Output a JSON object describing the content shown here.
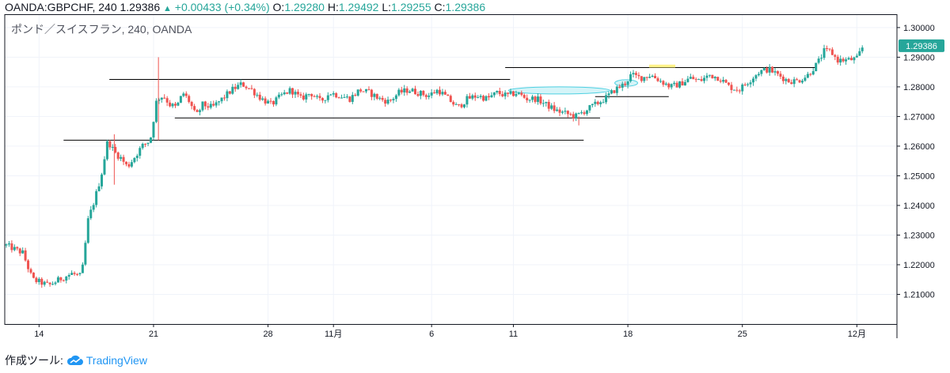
{
  "header": {
    "symbol": "OANDA:GBPCHF, 240",
    "last": "1.29386",
    "change": "+0.00433 (+0.34%)",
    "o_label": "O:",
    "o_value": "1.29280",
    "h_label": "H:",
    "h_value": "1.29492",
    "l_label": "L:",
    "l_value": "1.29255",
    "c_label": "C:",
    "c_value": "1.29386",
    "triangle_icon": "triangle-up-icon"
  },
  "footer": {
    "made_with": "作成ツール:",
    "brand": "TradingView",
    "logo_icon": "tradingview-cloud-icon"
  },
  "colors": {
    "up": "#26a69a",
    "down": "#ef5350",
    "grid": "#f0f3fa",
    "axis": "#131722",
    "price_tag": "#26a69a",
    "highlight_cyan": "#b2ebf2",
    "highlight_yellow": "#fff176"
  },
  "chart_data": {
    "type": "candlestick",
    "title": "ポンド／スイスフラン, 240, OANDA",
    "ylim": [
      1.2,
      1.3045
    ],
    "y_ticks": [
      "1.30000",
      "1.29000",
      "1.28000",
      "1.27000",
      "1.26000",
      "1.25000",
      "1.24000",
      "1.23000",
      "1.22000",
      "1.21000"
    ],
    "y_tick_values": [
      1.3,
      1.29,
      1.28,
      1.27,
      1.26,
      1.25,
      1.24,
      1.23,
      1.22,
      1.21
    ],
    "x_labels": [
      "14",
      "21",
      "28",
      "11月",
      "6",
      "11",
      "18",
      "25",
      "12月"
    ],
    "x_label_day_index": [
      2,
      9,
      16,
      20,
      26,
      31,
      38,
      45,
      52
    ],
    "total_days": 53,
    "current_price_label": "1.29386",
    "current_price": 1.29386,
    "close_path": [
      [
        0,
        1.2265
      ],
      [
        1,
        1.224
      ],
      [
        1.6,
        1.215
      ],
      [
        2.6,
        1.213
      ],
      [
        3.4,
        1.2155
      ],
      [
        4.0,
        1.217
      ],
      [
        4.6,
        1.216
      ],
      [
        5.0,
        1.235
      ],
      [
        5.4,
        1.242
      ],
      [
        5.8,
        1.25
      ],
      [
        6.2,
        1.262
      ],
      [
        6.6,
        1.258
      ],
      [
        7.0,
        1.256
      ],
      [
        7.4,
        1.253
      ],
      [
        7.8,
        1.256
      ],
      [
        8.3,
        1.26
      ],
      [
        8.8,
        1.262
      ],
      [
        9.2,
        1.276
      ],
      [
        9.6,
        1.277
      ],
      [
        10.0,
        1.274
      ],
      [
        10.4,
        1.273
      ],
      [
        10.8,
        1.278
      ],
      [
        11.2,
        1.275
      ],
      [
        11.6,
        1.27
      ],
      [
        12.0,
        1.274
      ],
      [
        12.6,
        1.273
      ],
      [
        13.2,
        1.276
      ],
      [
        13.8,
        1.279
      ],
      [
        14.4,
        1.281
      ],
      [
        15.0,
        1.279
      ],
      [
        15.6,
        1.276
      ],
      [
        16.2,
        1.274
      ],
      [
        16.8,
        1.277
      ],
      [
        17.4,
        1.279
      ],
      [
        18.0,
        1.276
      ],
      [
        18.6,
        1.278
      ],
      [
        19.2,
        1.275
      ],
      [
        19.8,
        1.278
      ],
      [
        20.4,
        1.277
      ],
      [
        21.0,
        1.276
      ],
      [
        21.6,
        1.279
      ],
      [
        22.2,
        1.278
      ],
      [
        22.8,
        1.276
      ],
      [
        23.4,
        1.275
      ],
      [
        24.0,
        1.278
      ],
      [
        24.6,
        1.279
      ],
      [
        25.2,
        1.278
      ],
      [
        25.8,
        1.277
      ],
      [
        26.4,
        1.279
      ],
      [
        27.0,
        1.276
      ],
      [
        27.6,
        1.273
      ],
      [
        28.2,
        1.276
      ],
      [
        28.8,
        1.277
      ],
      [
        29.4,
        1.276
      ],
      [
        30.0,
        1.278
      ],
      [
        30.6,
        1.277
      ],
      [
        31.2,
        1.278
      ],
      [
        31.8,
        1.276
      ],
      [
        32.4,
        1.276
      ],
      [
        33.0,
        1.274
      ],
      [
        33.6,
        1.272
      ],
      [
        34.2,
        1.271
      ],
      [
        34.8,
        1.27
      ],
      [
        35.4,
        1.272
      ],
      [
        36.0,
        1.274
      ],
      [
        36.6,
        1.276
      ],
      [
        37.2,
        1.279
      ],
      [
        37.8,
        1.281
      ],
      [
        38.2,
        1.284
      ],
      [
        38.8,
        1.283
      ],
      [
        39.4,
        1.284
      ],
      [
        40.0,
        1.282
      ],
      [
        40.6,
        1.28
      ],
      [
        41.2,
        1.281
      ],
      [
        41.8,
        1.283
      ],
      [
        42.4,
        1.282
      ],
      [
        43.0,
        1.284
      ],
      [
        43.6,
        1.283
      ],
      [
        44.2,
        1.28
      ],
      [
        44.8,
        1.279
      ],
      [
        45.4,
        1.282
      ],
      [
        46.0,
        1.285
      ],
      [
        46.6,
        1.286
      ],
      [
        47.2,
        1.284
      ],
      [
        47.8,
        1.282
      ],
      [
        48.4,
        1.282
      ],
      [
        49.0,
        1.284
      ],
      [
        49.6,
        1.288
      ],
      [
        50.0,
        1.292
      ],
      [
        50.4,
        1.292
      ],
      [
        50.8,
        1.289
      ],
      [
        51.4,
        1.289
      ],
      [
        52.0,
        1.2895
      ],
      [
        52.4,
        1.2939
      ]
    ],
    "spikes": [
      {
        "day": 9.3,
        "high": 1.29,
        "low": 1.262
      },
      {
        "day": 6.6,
        "high": 1.264,
        "low": 1.247
      },
      {
        "day": 35.0,
        "high": 1.27,
        "low": 1.267
      }
    ],
    "horizontal_lines": [
      {
        "y": 1.2825,
        "from_day": 6.3,
        "to_day": 30.8
      },
      {
        "y": 1.2695,
        "from_day": 10.3,
        "to_day": 36.3
      },
      {
        "y": 1.262,
        "from_day": 3.5,
        "to_day": 35.3
      },
      {
        "y": 1.2865,
        "from_day": 30.5,
        "to_day": 49.5
      },
      {
        "y": 1.2767,
        "from_day": 36.0,
        "to_day": 40.5
      }
    ],
    "highlights": [
      {
        "shape": "ellipse",
        "color": "cyan",
        "cx_day": 33.8,
        "cy": 1.2788,
        "rx_day": 3.1,
        "ry": 0.0012
      },
      {
        "shape": "ellipse",
        "color": "cyan",
        "cx_day": 37.9,
        "cy": 1.2813,
        "rx_day": 0.7,
        "ry": 0.0011
      },
      {
        "shape": "rect",
        "color": "yellow",
        "from_day": 39.3,
        "to_day": 40.9,
        "y_top": 1.2875,
        "y_bottom": 1.2865
      }
    ]
  }
}
